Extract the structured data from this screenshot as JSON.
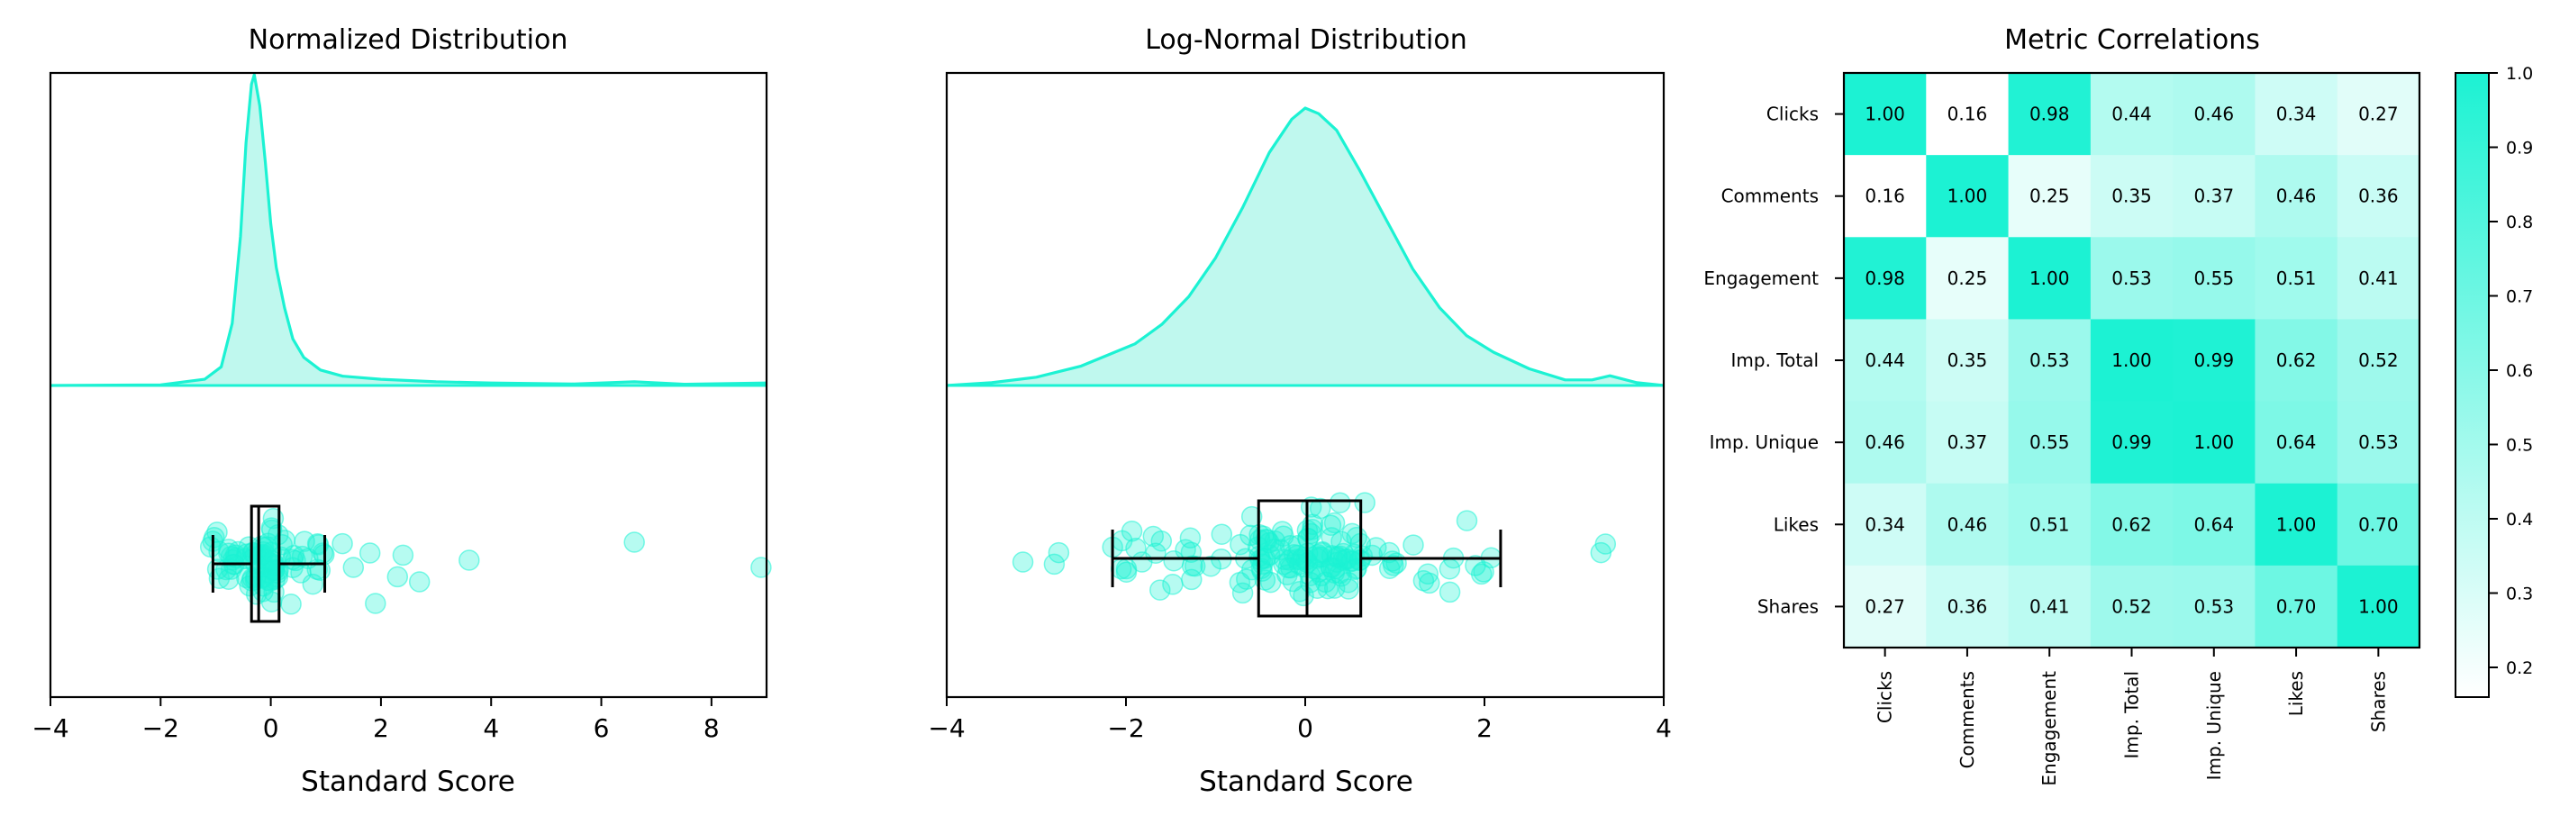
{
  "colors": {
    "accent": "#1CF2D3",
    "accent_fill": "#BFF8EE",
    "axis": "#000000",
    "background": "#FFFFFF"
  },
  "chart_data": [
    {
      "type": "density-boxplot",
      "title": "Normalized Distribution",
      "xlabel": "Standard Score",
      "ylabel": "",
      "xlim": [
        -4,
        9
      ],
      "xticks": [
        "−4",
        "−2",
        "0",
        "2",
        "4",
        "6",
        "8"
      ],
      "grid": false,
      "kde": {
        "x": [
          -4,
          -2,
          -1.2,
          -0.9,
          -0.7,
          -0.55,
          -0.45,
          -0.35,
          -0.3,
          -0.2,
          -0.1,
          0.0,
          0.1,
          0.25,
          0.4,
          0.6,
          0.9,
          1.3,
          2.0,
          3.0,
          4.0,
          5.5,
          6.6,
          7.5,
          9
        ],
        "y": [
          0,
          0.002,
          0.02,
          0.06,
          0.2,
          0.48,
          0.78,
          0.97,
          1.0,
          0.9,
          0.72,
          0.52,
          0.38,
          0.25,
          0.15,
          0.09,
          0.05,
          0.03,
          0.02,
          0.012,
          0.008,
          0.005,
          0.012,
          0.004,
          0.008
        ]
      },
      "box": {
        "whisker_low": -1.05,
        "q1": -0.35,
        "median": -0.22,
        "q3": 0.15,
        "whisker_high": 0.98
      },
      "points_range": [
        -1.1,
        1.0
      ],
      "point_count": 90,
      "outliers": [
        {
          "x": 1.3,
          "y": 0.28
        },
        {
          "x": 1.5,
          "y": -0.05
        },
        {
          "x": 1.8,
          "y": 0.15
        },
        {
          "x": 1.9,
          "y": -0.55
        },
        {
          "x": 2.4,
          "y": 0.12
        },
        {
          "x": 2.3,
          "y": -0.18
        },
        {
          "x": 2.7,
          "y": -0.25
        },
        {
          "x": 3.6,
          "y": 0.05
        },
        {
          "x": 6.6,
          "y": 0.3
        },
        {
          "x": 8.9,
          "y": -0.05
        }
      ]
    },
    {
      "type": "density-boxplot",
      "title": "Log-Normal Distribution",
      "xlabel": "Standard Score",
      "ylabel": "",
      "xlim": [
        -4,
        4
      ],
      "xticks": [
        "−4",
        "−2",
        "0",
        "2",
        "4"
      ],
      "grid": false,
      "kde": {
        "x": [
          -4,
          -3.5,
          -3,
          -2.5,
          -2.2,
          -1.9,
          -1.6,
          -1.3,
          -1.0,
          -0.7,
          -0.4,
          -0.15,
          0.0,
          0.15,
          0.35,
          0.6,
          0.9,
          1.2,
          1.5,
          1.8,
          2.1,
          2.5,
          2.9,
          3.2,
          3.4,
          3.7,
          4
        ],
        "y": [
          0,
          0.01,
          0.03,
          0.07,
          0.11,
          0.15,
          0.22,
          0.32,
          0.46,
          0.64,
          0.84,
          0.96,
          1.0,
          0.98,
          0.92,
          0.78,
          0.6,
          0.42,
          0.28,
          0.18,
          0.12,
          0.06,
          0.02,
          0.02,
          0.035,
          0.01,
          0.0
        ]
      },
      "box": {
        "whisker_low": -2.15,
        "q1": -0.52,
        "median": 0.02,
        "q3": 0.62,
        "whisker_high": 2.18
      },
      "points_range": [
        -2.2,
        2.2
      ],
      "point_count": 150,
      "outliers": [
        {
          "x": -3.15,
          "y": -0.05
        },
        {
          "x": -2.8,
          "y": -0.08
        },
        {
          "x": -2.75,
          "y": 0.08
        },
        {
          "x": 3.3,
          "y": 0.08
        },
        {
          "x": 3.35,
          "y": 0.2
        }
      ]
    },
    {
      "type": "heatmap",
      "title": "Metric Correlations",
      "labels": [
        "Clicks",
        "Comments",
        "Engagement",
        "Imp. Total",
        "Imp. Unique",
        "Likes",
        "Shares"
      ],
      "matrix": [
        [
          "1.00",
          "0.16",
          "0.98",
          "0.44",
          "0.46",
          "0.34",
          "0.27"
        ],
        [
          "0.16",
          "1.00",
          "0.25",
          "0.35",
          "0.37",
          "0.46",
          "0.36"
        ],
        [
          "0.98",
          "0.25",
          "1.00",
          "0.53",
          "0.55",
          "0.51",
          "0.41"
        ],
        [
          "0.44",
          "0.35",
          "0.53",
          "1.00",
          "0.99",
          "0.62",
          "0.52"
        ],
        [
          "0.46",
          "0.37",
          "0.55",
          "0.99",
          "1.00",
          "0.64",
          "0.53"
        ],
        [
          "0.34",
          "0.46",
          "0.51",
          "0.62",
          "0.64",
          "1.00",
          "0.70"
        ],
        [
          "0.27",
          "0.36",
          "0.41",
          "0.52",
          "0.53",
          "0.70",
          "1.00"
        ]
      ],
      "colorbar": {
        "min": 0.16,
        "max": 1.0,
        "ticks": [
          "1.0",
          "0.9",
          "0.8",
          "0.7",
          "0.6",
          "0.5",
          "0.4",
          "0.3",
          "0.2"
        ],
        "tick_values": [
          1.0,
          0.9,
          0.8,
          0.7,
          0.6,
          0.5,
          0.4,
          0.3,
          0.2
        ]
      }
    }
  ]
}
